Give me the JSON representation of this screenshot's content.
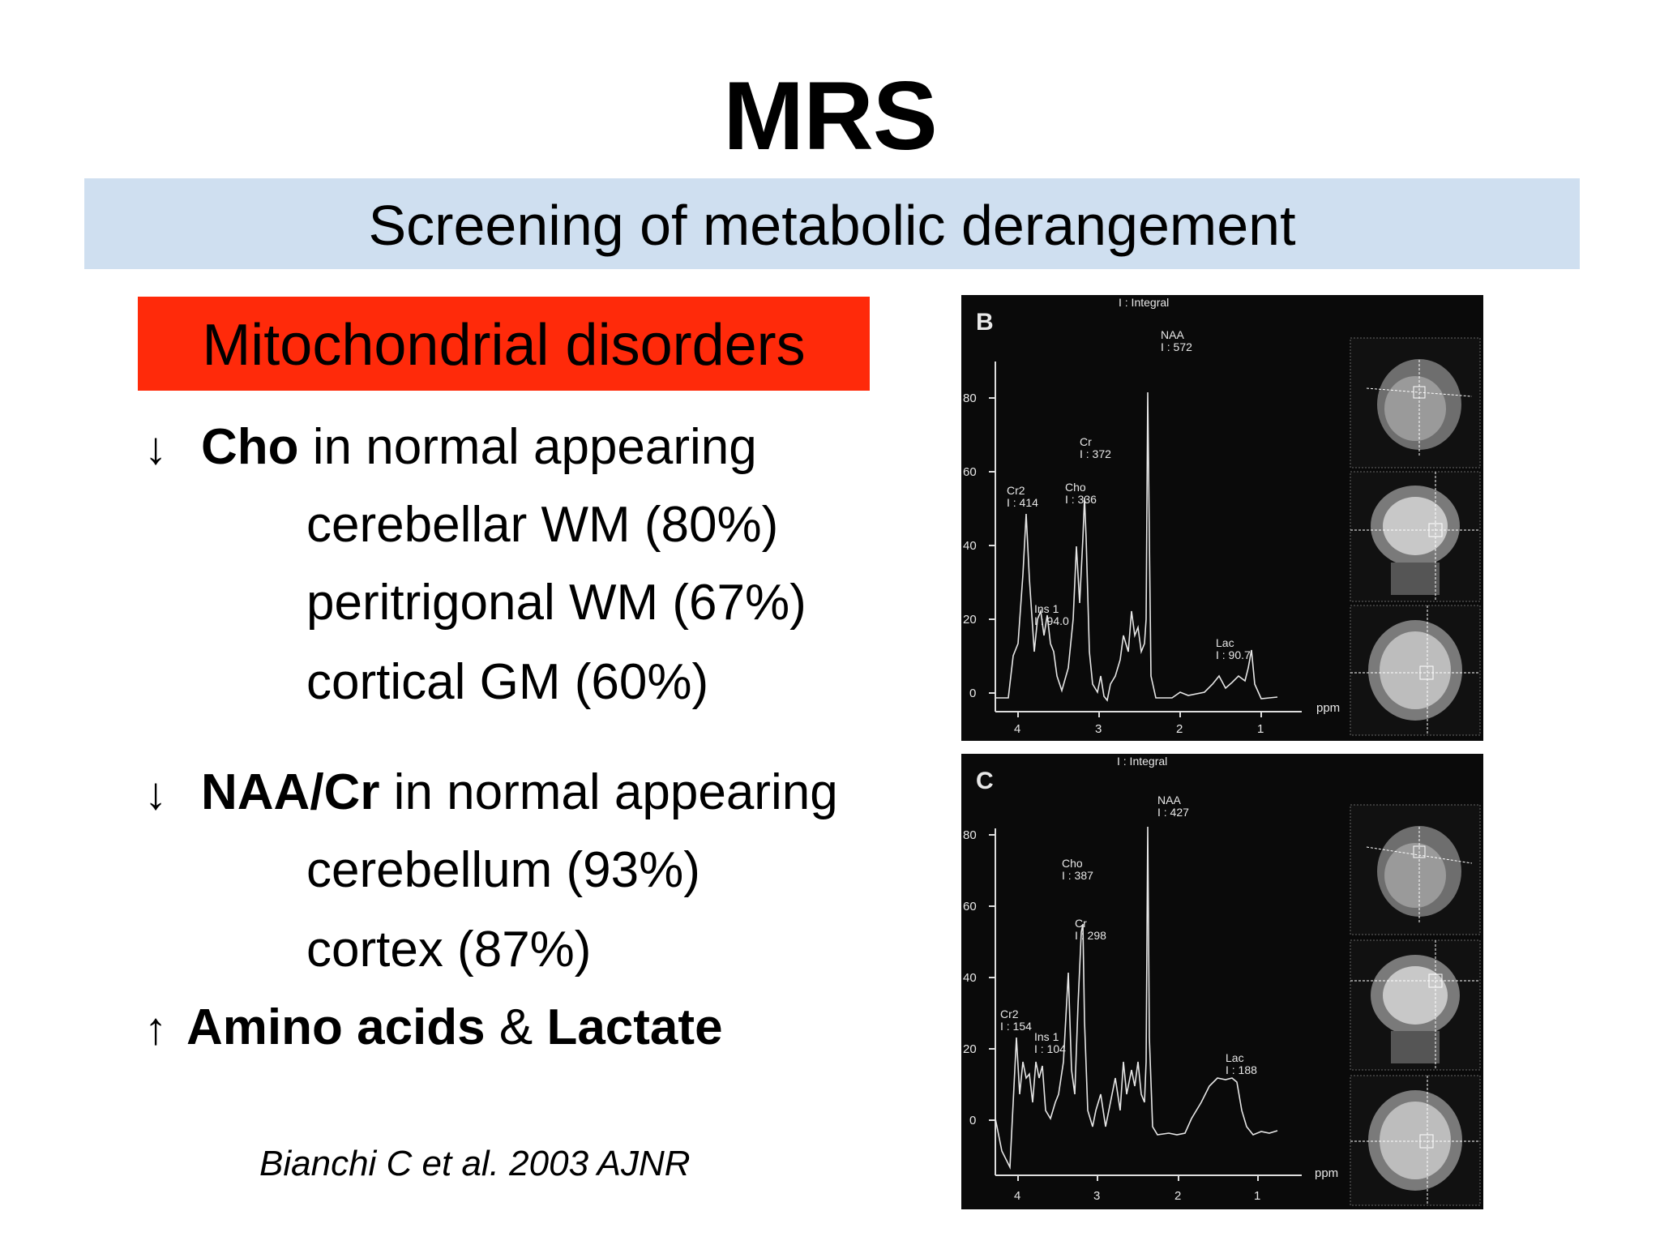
{
  "slide": {
    "title": "MRS",
    "subtitle": "Screening of metabolic derangement",
    "red_label": "Mitochondrial disorders",
    "bullets": {
      "cho": {
        "arrow": "↓",
        "bold": "Cho",
        "rest": " in normal appearing"
      },
      "cho_items": [
        "cerebellar WM (80%)",
        "peritrigonal WM (67%)",
        "cortical GM (60%)"
      ],
      "naa": {
        "arrow": "↓",
        "bold": "NAA/Cr",
        "rest": " in normal appearing"
      },
      "naa_items": [
        "cerebellum (93%)",
        "cortex (87%)"
      ],
      "amino": {
        "arrow": "↑",
        "bold1": "Amino acids",
        "amp": " & ",
        "bold2": "Lactate"
      }
    },
    "citation": "Bianchi C et al. 2003 AJNR"
  },
  "panels": [
    {
      "letter": "B",
      "header": "I : Integral",
      "y_ticks": [
        "80",
        "60",
        "40",
        "20",
        "0"
      ],
      "x_ticks": [
        "4",
        "3",
        "2",
        "1"
      ],
      "x_unit": "ppm",
      "peaks": [
        {
          "name": "Cr2",
          "integral": "I : 414"
        },
        {
          "name": "Ins 1",
          "integral": "I : 94.0"
        },
        {
          "name": "Cho",
          "integral": "I : 336"
        },
        {
          "name": "Cr",
          "integral": "I : 372"
        },
        {
          "name": "NAA",
          "integral": "I : 572"
        },
        {
          "name": "Lac",
          "integral": "I : 90.7"
        }
      ]
    },
    {
      "letter": "C",
      "header": "I : Integral",
      "y_ticks": [
        "80",
        "60",
        "40",
        "20",
        "0"
      ],
      "x_ticks": [
        "4",
        "3",
        "2",
        "1"
      ],
      "x_unit": "ppm",
      "peaks": [
        {
          "name": "Cr2",
          "integral": "I : 154"
        },
        {
          "name": "Ins 1",
          "integral": "I : 104"
        },
        {
          "name": "Cho",
          "integral": "I : 387"
        },
        {
          "name": "Cr",
          "integral": "I : 298"
        },
        {
          "name": "NAA",
          "integral": "I : 427"
        },
        {
          "name": "Lac",
          "integral": "I : 188"
        }
      ]
    }
  ]
}
